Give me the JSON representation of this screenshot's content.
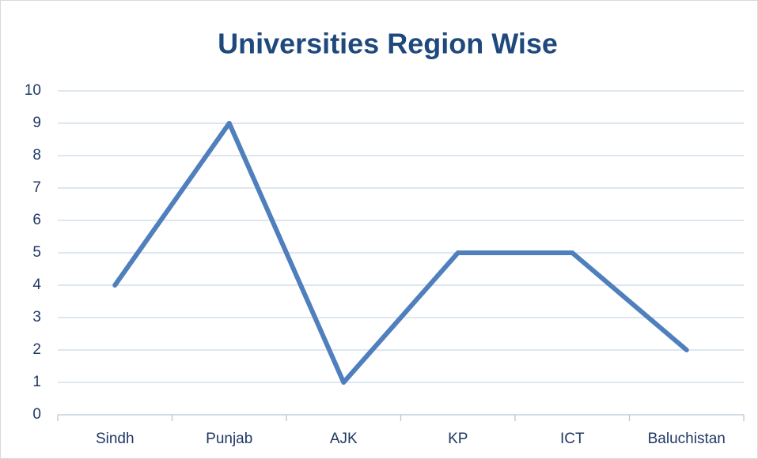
{
  "chart_data": {
    "type": "line",
    "title": "Universities Region Wise",
    "categories": [
      "Sindh",
      "Punjab",
      "AJK",
      "KP",
      "ICT",
      "Baluchistan"
    ],
    "values": [
      4,
      9,
      1,
      5,
      5,
      2
    ],
    "color": "#4f7fbc",
    "ylim": [
      0,
      10
    ],
    "yticks": [
      0,
      1,
      2,
      3,
      4,
      5,
      6,
      7,
      8,
      9,
      10
    ],
    "grid": true
  }
}
